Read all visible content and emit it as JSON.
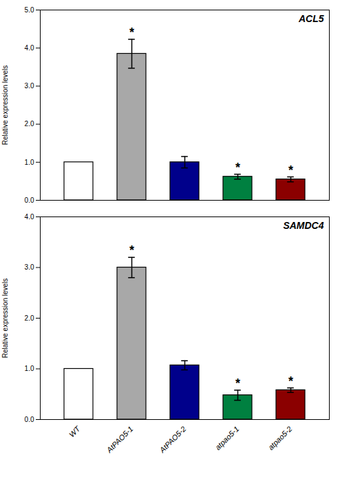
{
  "chart_data": [
    {
      "type": "bar",
      "title": "ACL5",
      "categories": [
        "WT",
        "AtPAO5-1",
        "AtPAO5-2",
        "atpao5-1",
        "atpao5-2"
      ],
      "values": [
        1.0,
        3.85,
        1.0,
        0.62,
        0.55
      ],
      "errors": [
        0.0,
        0.38,
        0.15,
        0.065,
        0.065
      ],
      "colors": [
        "#ffffff",
        "#a8a8a8",
        "#00008b",
        "#008040",
        "#8b0000"
      ],
      "annotations": [
        {
          "category": "AtPAO5-1",
          "text": "*"
        },
        {
          "category": "atpao5-1",
          "text": "*"
        },
        {
          "category": "atpao5-2",
          "text": "*"
        }
      ],
      "ylabel": "Relative expression levels",
      "ylim": [
        0,
        5
      ],
      "yticks": [
        0,
        1,
        2,
        3,
        4,
        5
      ],
      "grid": false,
      "tick_labels": "y"
    },
    {
      "type": "bar",
      "title": "SAMDC4",
      "categories": [
        "WT",
        "AtPAO5-1",
        "AtPAO5-2",
        "atpao5-1",
        "atpao5-2"
      ],
      "values": [
        1.0,
        3.0,
        1.07,
        0.48,
        0.58
      ],
      "errors": [
        0.0,
        0.2,
        0.09,
        0.1,
        0.045
      ],
      "colors": [
        "#ffffff",
        "#a8a8a8",
        "#00008b",
        "#008040",
        "#8b0000"
      ],
      "annotations": [
        {
          "category": "AtPAO5-1",
          "text": "*"
        },
        {
          "category": "atpao5-1",
          "text": "*"
        },
        {
          "category": "atpao5-2",
          "text": "*"
        }
      ],
      "ylabel": "Relative expression levels",
      "ylim": [
        0,
        4
      ],
      "yticks": [
        0,
        1,
        2,
        3,
        4
      ],
      "grid": false
    }
  ]
}
